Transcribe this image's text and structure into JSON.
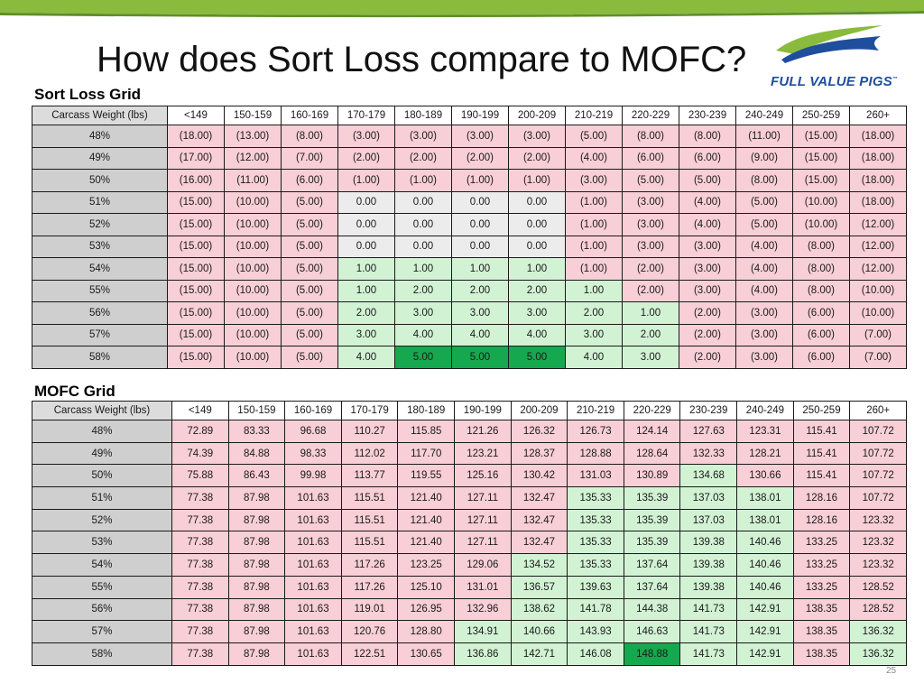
{
  "slide": {
    "title": "How does Sort Loss compare to MOFC?",
    "page_number": "25"
  },
  "logo": {
    "text": "FULL VALUE PIGS",
    "tm": "™"
  },
  "colors": {
    "loss": "#f8cfd6",
    "zero": "#ececec",
    "premium": "#d2f2d4",
    "best": "#16a84e",
    "header_gray": "#cfcfcf",
    "topbar_green": "#8bbb3c",
    "logo_blue": "#1f4e9c"
  },
  "sort_loss": {
    "label": "Sort Loss Grid",
    "header_label": "Carcass Weight (lbs)",
    "columns": [
      "<149",
      "150-159",
      "160-169",
      "170-179",
      "180-189",
      "190-199",
      "200-209",
      "210-219",
      "220-229",
      "230-239",
      "240-249",
      "250-259",
      "260+"
    ],
    "rows": [
      {
        "label": "48%",
        "values": [
          "(18.00)",
          "(13.00)",
          "(8.00)",
          "(3.00)",
          "(3.00)",
          "(3.00)",
          "(3.00)",
          "(5.00)",
          "(8.00)",
          "(8.00)",
          "(11.00)",
          "(15.00)",
          "(18.00)"
        ]
      },
      {
        "label": "49%",
        "values": [
          "(17.00)",
          "(12.00)",
          "(7.00)",
          "(2.00)",
          "(2.00)",
          "(2.00)",
          "(2.00)",
          "(4.00)",
          "(6.00)",
          "(6.00)",
          "(9.00)",
          "(15.00)",
          "(18.00)"
        ]
      },
      {
        "label": "50%",
        "values": [
          "(16.00)",
          "(11.00)",
          "(6.00)",
          "(1.00)",
          "(1.00)",
          "(1.00)",
          "(1.00)",
          "(3.00)",
          "(5.00)",
          "(5.00)",
          "(8.00)",
          "(15.00)",
          "(18.00)"
        ]
      },
      {
        "label": "51%",
        "values": [
          "(15.00)",
          "(10.00)",
          "(5.00)",
          "0.00",
          "0.00",
          "0.00",
          "0.00",
          "(1.00)",
          "(3.00)",
          "(4.00)",
          "(5.00)",
          "(10.00)",
          "(18.00)"
        ]
      },
      {
        "label": "52%",
        "values": [
          "(15.00)",
          "(10.00)",
          "(5.00)",
          "0.00",
          "0.00",
          "0.00",
          "0.00",
          "(1.00)",
          "(3.00)",
          "(4.00)",
          "(5.00)",
          "(10.00)",
          "(12.00)"
        ]
      },
      {
        "label": "53%",
        "values": [
          "(15.00)",
          "(10.00)",
          "(5.00)",
          "0.00",
          "0.00",
          "0.00",
          "0.00",
          "(1.00)",
          "(3.00)",
          "(3.00)",
          "(4.00)",
          "(8.00)",
          "(12.00)"
        ]
      },
      {
        "label": "54%",
        "values": [
          "(15.00)",
          "(10.00)",
          "(5.00)",
          "1.00",
          "1.00",
          "1.00",
          "1.00",
          "(1.00)",
          "(2.00)",
          "(3.00)",
          "(4.00)",
          "(8.00)",
          "(12.00)"
        ]
      },
      {
        "label": "55%",
        "values": [
          "(15.00)",
          "(10.00)",
          "(5.00)",
          "1.00",
          "2.00",
          "2.00",
          "2.00",
          "1.00",
          "(2.00)",
          "(3.00)",
          "(4.00)",
          "(8.00)",
          "(10.00)"
        ]
      },
      {
        "label": "56%",
        "values": [
          "(15.00)",
          "(10.00)",
          "(5.00)",
          "2.00",
          "3.00",
          "3.00",
          "3.00",
          "2.00",
          "1.00",
          "(2.00)",
          "(3.00)",
          "(6.00)",
          "(10.00)"
        ]
      },
      {
        "label": "57%",
        "values": [
          "(15.00)",
          "(10.00)",
          "(5.00)",
          "3.00",
          "4.00",
          "4.00",
          "4.00",
          "3.00",
          "2.00",
          "(2.00)",
          "(3.00)",
          "(6.00)",
          "(7.00)"
        ]
      },
      {
        "label": "58%",
        "values": [
          "(15.00)",
          "(10.00)",
          "(5.00)",
          "4.00",
          "5.00",
          "5.00",
          "5.00",
          "4.00",
          "3.00",
          "(2.00)",
          "(3.00)",
          "(6.00)",
          "(7.00)"
        ]
      }
    ]
  },
  "mofc": {
    "label": "MOFC Grid",
    "header_label": "Carcass Weight (lbs)",
    "columns": [
      "<149",
      "150-159",
      "160-169",
      "170-179",
      "180-189",
      "190-199",
      "200-209",
      "210-219",
      "220-229",
      "230-239",
      "240-249",
      "250-259",
      "260+"
    ],
    "rows": [
      {
        "label": "48%",
        "values": [
          "72.89",
          "83.33",
          "96.68",
          "110.27",
          "115.85",
          "121.26",
          "126.32",
          "126.73",
          "124.14",
          "127.63",
          "123.31",
          "115.41",
          "107.72"
        ]
      },
      {
        "label": "49%",
        "values": [
          "74.39",
          "84.88",
          "98.33",
          "112.02",
          "117.70",
          "123.21",
          "128.37",
          "128.88",
          "128.64",
          "132.33",
          "128.21",
          "115.41",
          "107.72"
        ]
      },
      {
        "label": "50%",
        "values": [
          "75.88",
          "86.43",
          "99.98",
          "113.77",
          "119.55",
          "125.16",
          "130.42",
          "131.03",
          "130.89",
          "134.68",
          "130.66",
          "115.41",
          "107.72"
        ]
      },
      {
        "label": "51%",
        "values": [
          "77.38",
          "87.98",
          "101.63",
          "115.51",
          "121.40",
          "127.11",
          "132.47",
          "135.33",
          "135.39",
          "137.03",
          "138.01",
          "128.16",
          "107.72"
        ]
      },
      {
        "label": "52%",
        "values": [
          "77.38",
          "87.98",
          "101.63",
          "115.51",
          "121.40",
          "127.11",
          "132.47",
          "135.33",
          "135.39",
          "137.03",
          "138.01",
          "128.16",
          "123.32"
        ]
      },
      {
        "label": "53%",
        "values": [
          "77.38",
          "87.98",
          "101.63",
          "115.51",
          "121.40",
          "127.11",
          "132.47",
          "135.33",
          "135.39",
          "139.38",
          "140.46",
          "133.25",
          "123.32"
        ]
      },
      {
        "label": "54%",
        "values": [
          "77.38",
          "87.98",
          "101.63",
          "117.26",
          "123.25",
          "129.06",
          "134.52",
          "135.33",
          "137.64",
          "139.38",
          "140.46",
          "133.25",
          "123.32"
        ]
      },
      {
        "label": "55%",
        "values": [
          "77.38",
          "87.98",
          "101.63",
          "117.26",
          "125.10",
          "131.01",
          "136.57",
          "139.63",
          "137.64",
          "139.38",
          "140.46",
          "133.25",
          "128.52"
        ]
      },
      {
        "label": "56%",
        "values": [
          "77.38",
          "87.98",
          "101.63",
          "119.01",
          "126.95",
          "132.96",
          "138.62",
          "141.78",
          "144.38",
          "141.73",
          "142.91",
          "138.35",
          "128.52"
        ]
      },
      {
        "label": "57%",
        "values": [
          "77.38",
          "87.98",
          "101.63",
          "120.76",
          "128.80",
          "134.91",
          "140.66",
          "143.93",
          "146.63",
          "141.73",
          "142.91",
          "138.35",
          "136.32"
        ]
      },
      {
        "label": "58%",
        "values": [
          "77.38",
          "87.98",
          "101.63",
          "122.51",
          "130.65",
          "136.86",
          "142.71",
          "146.08",
          "148.88",
          "141.73",
          "142.91",
          "138.35",
          "136.32"
        ]
      }
    ],
    "premium_cells": [
      [
        2,
        9
      ],
      [
        3,
        7
      ],
      [
        3,
        8
      ],
      [
        3,
        9
      ],
      [
        3,
        10
      ],
      [
        4,
        7
      ],
      [
        4,
        8
      ],
      [
        4,
        9
      ],
      [
        4,
        10
      ],
      [
        5,
        7
      ],
      [
        5,
        8
      ],
      [
        5,
        9
      ],
      [
        5,
        10
      ],
      [
        6,
        6
      ],
      [
        6,
        7
      ],
      [
        6,
        8
      ],
      [
        6,
        9
      ],
      [
        6,
        10
      ],
      [
        7,
        6
      ],
      [
        7,
        7
      ],
      [
        7,
        8
      ],
      [
        7,
        9
      ],
      [
        7,
        10
      ],
      [
        8,
        6
      ],
      [
        8,
        7
      ],
      [
        8,
        8
      ],
      [
        8,
        9
      ],
      [
        8,
        10
      ],
      [
        9,
        5
      ],
      [
        9,
        6
      ],
      [
        9,
        7
      ],
      [
        9,
        8
      ],
      [
        9,
        9
      ],
      [
        9,
        10
      ],
      [
        9,
        12
      ],
      [
        10,
        5
      ],
      [
        10,
        6
      ],
      [
        10,
        7
      ],
      [
        10,
        9
      ],
      [
        10,
        10
      ],
      [
        10,
        12
      ]
    ],
    "best_cell": [
      10,
      8
    ]
  }
}
